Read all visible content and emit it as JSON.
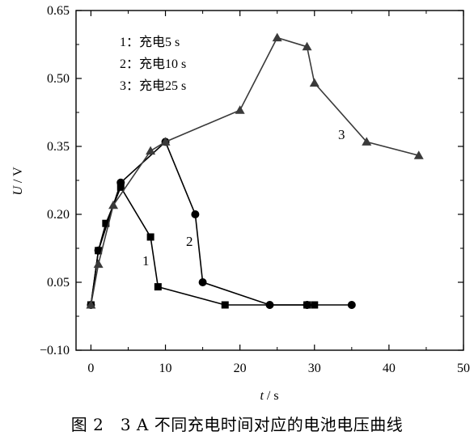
{
  "chart_data": {
    "type": "line",
    "xlabel_var": "t",
    "xlabel_unit": " / s",
    "ylabel_var": "U",
    "ylabel_unit": " / V",
    "xlim": [
      -2,
      50
    ],
    "ylim": [
      -0.1,
      0.65
    ],
    "x_ticks": [
      0,
      10,
      20,
      30,
      40,
      50
    ],
    "x_tick_labels": [
      "0",
      "10",
      "20",
      "30",
      "40",
      "50"
    ],
    "y_ticks": [
      -0.1,
      0.05,
      0.2,
      0.35,
      0.5,
      0.65
    ],
    "y_tick_labels": [
      "−0.10",
      "0.05",
      "0.20",
      "0.35",
      "0.50",
      "0.65"
    ],
    "grid": false,
    "legend": [
      {
        "label": "1：充电5 s"
      },
      {
        "label": "2：充电10 s"
      },
      {
        "label": "3：充电25 s"
      }
    ],
    "legend_placement": "top-left",
    "series": [
      {
        "tag": "1",
        "marker": "square",
        "x": [
          0,
          1,
          2,
          4,
          8,
          9,
          18,
          29,
          30
        ],
        "y": [
          0.0,
          0.12,
          0.18,
          0.26,
          0.15,
          0.04,
          0.0,
          0.0,
          0.0
        ]
      },
      {
        "tag": "2",
        "marker": "circle",
        "x": [
          0,
          1,
          4,
          10,
          14,
          15,
          24,
          29,
          35
        ],
        "y": [
          0.0,
          0.12,
          0.27,
          0.36,
          0.2,
          0.05,
          0.0,
          0.0,
          0.0
        ]
      },
      {
        "tag": "3",
        "marker": "triangle",
        "x": [
          0,
          1,
          3,
          8,
          10,
          20,
          25,
          29,
          30,
          37,
          44
        ],
        "y": [
          0.0,
          0.09,
          0.22,
          0.34,
          0.36,
          0.43,
          0.59,
          0.57,
          0.49,
          0.36,
          0.33
        ]
      }
    ]
  },
  "caption": "图 2　3 A 不同充电时间对应的电池电压曲线"
}
